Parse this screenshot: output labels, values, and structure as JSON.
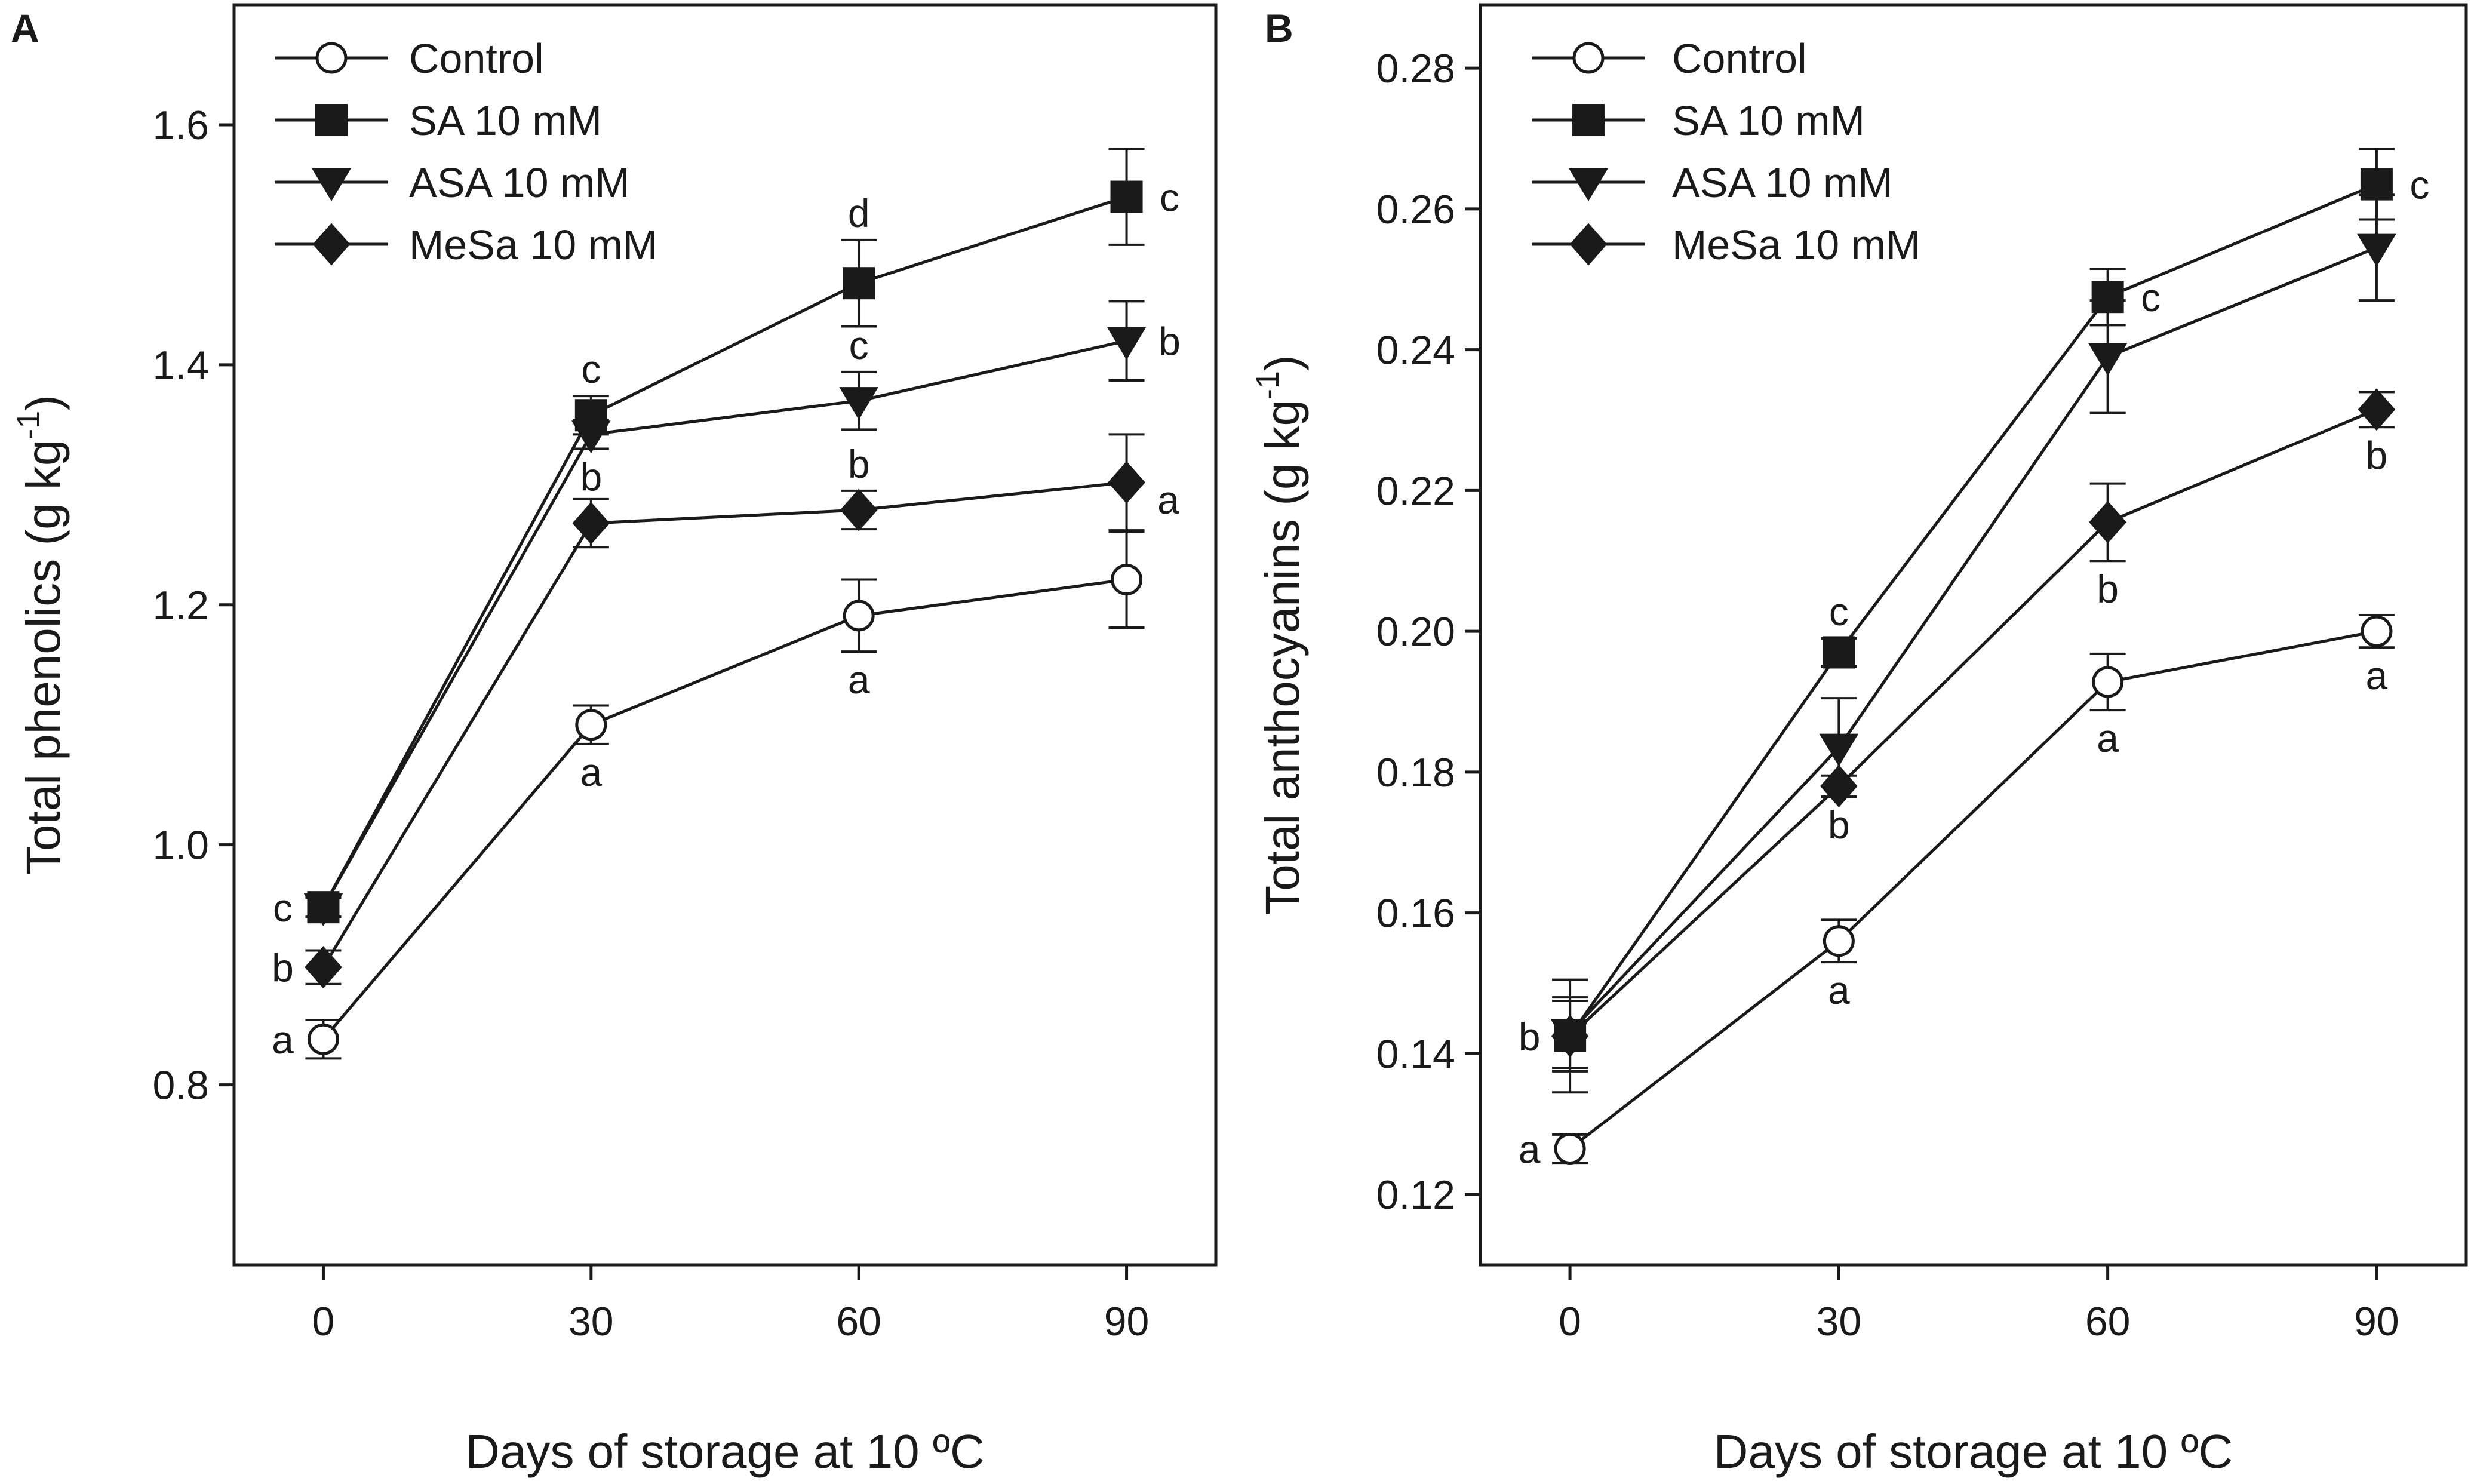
{
  "chart_data": [
    {
      "panel": "A",
      "type": "line",
      "xlabel": "Days of storage at 10 ºC",
      "ylabel": "Total phenolics (g kg",
      "ylabel_sup": "-1",
      "ylabel_end": ")",
      "x": [
        0,
        30,
        60,
        90
      ],
      "x_ticks": [
        "0",
        "30",
        "60",
        "90"
      ],
      "xlim": [
        -10,
        100
      ],
      "ylim": [
        0.65,
        1.7
      ],
      "y_ticks": [
        "0.8",
        "1.0",
        "1.2",
        "1.4",
        "1.6"
      ],
      "y_tick_values": [
        0.8,
        1.0,
        1.2,
        1.4,
        1.6
      ],
      "legend": "top-left",
      "series": [
        {
          "name": "Control",
          "marker": "circle",
          "values": [
            0.838,
            1.1,
            1.191,
            1.221
          ],
          "errors": [
            0.016,
            0.016,
            0.03,
            0.04
          ],
          "letters": [
            {
              "text": "a",
              "point": 0,
              "placement": "left"
            },
            {
              "text": "a",
              "point": 1,
              "placement": "below"
            },
            {
              "text": "a",
              "point": 2,
              "placement": "below"
            },
            {
              "text": "a",
              "point": 3,
              "placement": "upper-right"
            }
          ]
        },
        {
          "name": "SA 10 mM",
          "marker": "square",
          "values": [
            0.948,
            1.358,
            1.468,
            1.54
          ],
          "errors": [
            0.008,
            0.016,
            0.036,
            0.04
          ],
          "letters": [
            {
              "text": "c",
              "point": 0,
              "placement": "left"
            },
            {
              "text": "c",
              "point": 1,
              "placement": "above"
            },
            {
              "text": "d",
              "point": 2,
              "placement": "above"
            },
            {
              "text": "c",
              "point": 3,
              "placement": "right"
            }
          ]
        },
        {
          "name": "ASA 10 mM",
          "marker": "triangle-down",
          "values": [
            0.948,
            1.342,
            1.37,
            1.42
          ],
          "errors": [
            0.008,
            0.012,
            0.024,
            0.033
          ],
          "letters": [
            {
              "text": "b",
              "point": 1,
              "placement": "below"
            },
            {
              "text": "c",
              "point": 2,
              "placement": "above"
            },
            {
              "text": "b",
              "point": 3,
              "placement": "right"
            }
          ]
        },
        {
          "name": "MeSa 10 mM",
          "marker": "diamond",
          "values": [
            0.898,
            1.268,
            1.279,
            1.302
          ],
          "errors": [
            0.014,
            0.02,
            0.016,
            0.04
          ],
          "letters": [
            {
              "text": "b",
              "point": 0,
              "placement": "left"
            },
            {
              "text": "b",
              "point": 2,
              "placement": "above"
            }
          ]
        }
      ]
    },
    {
      "panel": "B",
      "type": "line",
      "xlabel": "Days of storage at 10 ºC",
      "ylabel": "Total anthocyanins (g kg",
      "ylabel_sup": "-1",
      "ylabel_end": ")",
      "x": [
        0,
        30,
        60,
        90
      ],
      "x_ticks": [
        "0",
        "30",
        "60",
        "90"
      ],
      "xlim": [
        -10,
        100
      ],
      "ylim": [
        0.11,
        0.289
      ],
      "y_ticks": [
        "0.12",
        "0.14",
        "0.16",
        "0.18",
        "0.20",
        "0.22",
        "0.24",
        "0.26",
        "0.28"
      ],
      "y_tick_values": [
        0.12,
        0.14,
        0.16,
        0.18,
        0.2,
        0.22,
        0.24,
        0.26,
        0.28
      ],
      "legend": "top-left",
      "series": [
        {
          "name": "Control",
          "marker": "circle",
          "values": [
            0.1265,
            0.156,
            0.1928,
            0.2
          ],
          "errors": [
            0.002,
            0.003,
            0.004,
            0.0023
          ],
          "letters": [
            {
              "text": "a",
              "point": 0,
              "placement": "left"
            },
            {
              "text": "a",
              "point": 1,
              "placement": "below"
            },
            {
              "text": "a",
              "point": 2,
              "placement": "below"
            },
            {
              "text": "a",
              "point": 3,
              "placement": "below"
            }
          ]
        },
        {
          "name": "SA 10 mM",
          "marker": "square",
          "values": [
            0.1425,
            0.197,
            0.2475,
            0.2635
          ],
          "errors": [
            0.008,
            0.002,
            0.004,
            0.005
          ],
          "letters": [
            {
              "text": "b",
              "point": 0,
              "placement": "left"
            },
            {
              "text": "c",
              "point": 1,
              "placement": "above"
            },
            {
              "text": "c",
              "point": 2,
              "placement": "right"
            },
            {
              "text": "c",
              "point": 3,
              "placement": "right"
            }
          ]
        },
        {
          "name": "ASA 10 mM",
          "marker": "triangle-down",
          "values": [
            0.143,
            0.1835,
            0.239,
            0.2545
          ],
          "errors": [
            0.005,
            0.007,
            0.008,
            0.0075
          ],
          "letters": []
        },
        {
          "name": "MeSa 10 mM",
          "marker": "diamond",
          "values": [
            0.1425,
            0.178,
            0.2155,
            0.2315
          ],
          "errors": [
            0.005,
            0.0015,
            0.0055,
            0.0025
          ],
          "letters": [
            {
              "text": "b",
              "point": 1,
              "placement": "below"
            },
            {
              "text": "b",
              "point": 2,
              "placement": "below"
            },
            {
              "text": "b",
              "point": 3,
              "placement": "below"
            }
          ]
        }
      ]
    }
  ],
  "style": {
    "ink": "#1a1a1a",
    "background": "#ffffff"
  }
}
